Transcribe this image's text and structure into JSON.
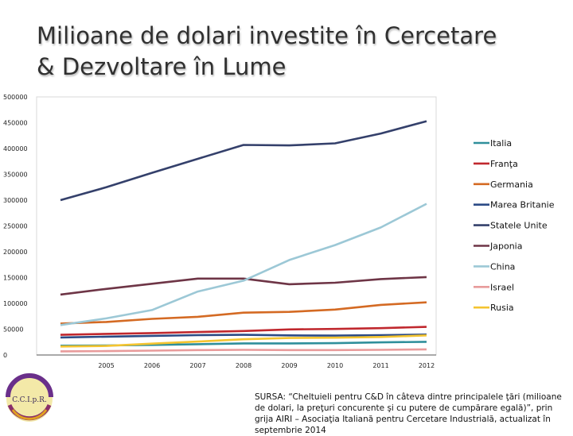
{
  "slide": {
    "title_line1": "Milioane de dolari investite în Cercetare",
    "title_line2": "& Dezvoltare în Lume",
    "source": "SURSA: “Cheltuieli pentru C&D în câteva dintre principalele ţări (milioane de dolari,  la preţuri concurente şi cu putere de cumpărare egală)”, prin grija AIRI – Asociaţia Italiană pentru Cercetare Industrială, actualizat în septembrie 2014",
    "logo_text": "C.C.I.p.R."
  },
  "chart_data": {
    "type": "line",
    "title": "Milioane de dolari investite în Cercetare & Dezvoltare în Lume",
    "xlabel": "",
    "ylabel": "",
    "ylim": [
      0,
      500000
    ],
    "y_ticks": [
      "0",
      "50000",
      "100000",
      "150000",
      "200000",
      "250000",
      "300000",
      "350000",
      "400000",
      "450000",
      "500000"
    ],
    "x": [
      "2004",
      "2005",
      "2006",
      "2007",
      "2008",
      "2009",
      "2010",
      "2011",
      "2012"
    ],
    "x_tick_labels": [
      "",
      "2005",
      "2006",
      "2007",
      "2008",
      "2009",
      "2010",
      "2011",
      "2012"
    ],
    "grid": false,
    "legend_position": "right",
    "series": [
      {
        "name": "Italia",
        "color": "#2f8f9b",
        "values": [
          18000,
          18500,
          19500,
          21000,
          22500,
          22500,
          23000,
          24500,
          25500
        ]
      },
      {
        "name": "Franţa",
        "color": "#c0282e",
        "values": [
          39000,
          41000,
          42500,
          44500,
          46500,
          49500,
          50500,
          52000,
          54500
        ]
      },
      {
        "name": "Germania",
        "color": "#d46a23",
        "values": [
          61000,
          64000,
          70000,
          74000,
          82000,
          83500,
          88000,
          97000,
          102000
        ]
      },
      {
        "name": "Marea Britanie",
        "color": "#2c4b86",
        "values": [
          34000,
          35500,
          37000,
          38500,
          39000,
          38000,
          37500,
          38500,
          39500
        ]
      },
      {
        "name": "Statele Unite",
        "color": "#34406b",
        "values": [
          300000,
          325000,
          353000,
          380000,
          407000,
          406000,
          410000,
          429000,
          453000
        ]
      },
      {
        "name": "Japonia",
        "color": "#6e3546",
        "values": [
          117000,
          128000,
          138000,
          148000,
          148000,
          137000,
          140000,
          147000,
          151000
        ]
      },
      {
        "name": "China",
        "color": "#9cc8d6",
        "values": [
          58000,
          71000,
          87000,
          123000,
          144000,
          184000,
          213000,
          247000,
          293000
        ]
      },
      {
        "name": "Israel",
        "color": "#e89b9b",
        "values": [
          7000,
          7500,
          8500,
          9500,
          10000,
          9500,
          9500,
          10000,
          11000
        ]
      },
      {
        "name": "Rusia",
        "color": "#f4c430",
        "values": [
          16500,
          17500,
          22000,
          26000,
          30500,
          33000,
          33500,
          35000,
          38000
        ]
      }
    ]
  }
}
